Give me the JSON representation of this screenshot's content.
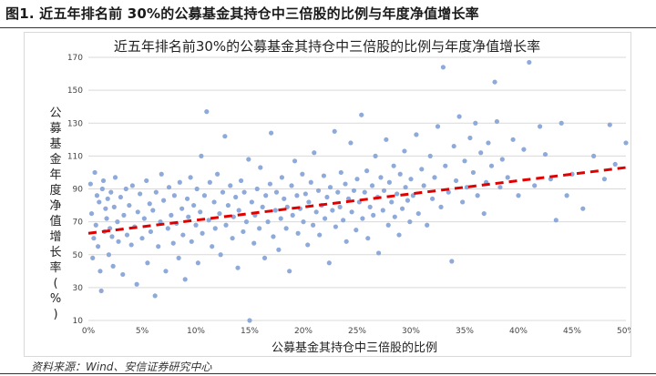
{
  "figure_caption": "图1. 近五年排名前 30%的公募基金其持仓中三倍股的比例与年度净值增长率",
  "source_note": "资料来源：Wind、安信证券研究中心",
  "chart_data": {
    "type": "scatter",
    "title": "近五年排名前30%的公募基金其持仓中三倍股的比例与年度净值增长率",
    "xlabel": "公募基金其持仓中三倍股的比例",
    "ylabel": "公募基金年度净值增长率(%)",
    "xlim": [
      0,
      0.5
    ],
    "ylim": [
      10,
      170
    ],
    "x_ticks": [
      "0%",
      "5%",
      "10%",
      "15%",
      "20%",
      "25%",
      "30%",
      "35%",
      "40%",
      "45%",
      "50%"
    ],
    "y_ticks": [
      "10",
      "30",
      "50",
      "70",
      "90",
      "110",
      "130",
      "150",
      "170"
    ],
    "grid": "horizontal",
    "legend": "none",
    "point_color": "#8eaadb",
    "trendline": {
      "style": "dashed",
      "color": "#e00000",
      "x": [
        0,
        0.5
      ],
      "y": [
        63,
        103
      ]
    },
    "series": [
      {
        "points": [
          [
            0.002,
            93
          ],
          [
            0.003,
            75
          ],
          [
            0.004,
            48
          ],
          [
            0.005,
            60
          ],
          [
            0.006,
            100
          ],
          [
            0.007,
            68
          ],
          [
            0.008,
            86
          ],
          [
            0.009,
            55
          ],
          [
            0.01,
            82
          ],
          [
            0.011,
            40
          ],
          [
            0.012,
            28
          ],
          [
            0.013,
            90
          ],
          [
            0.014,
            95
          ],
          [
            0.015,
            64
          ],
          [
            0.016,
            78
          ],
          [
            0.017,
            72
          ],
          [
            0.018,
            84
          ],
          [
            0.019,
            50
          ],
          [
            0.02,
            66
          ],
          [
            0.021,
            88
          ],
          [
            0.022,
            61
          ],
          [
            0.023,
            43
          ],
          [
            0.024,
            79
          ],
          [
            0.025,
            97
          ],
          [
            0.027,
            70
          ],
          [
            0.028,
            58
          ],
          [
            0.03,
            85
          ],
          [
            0.032,
            38
          ],
          [
            0.033,
            74
          ],
          [
            0.035,
            90
          ],
          [
            0.036,
            62
          ],
          [
            0.038,
            80
          ],
          [
            0.04,
            56
          ],
          [
            0.041,
            92
          ],
          [
            0.043,
            67
          ],
          [
            0.045,
            32
          ],
          [
            0.046,
            76
          ],
          [
            0.048,
            87
          ],
          [
            0.05,
            60
          ],
          [
            0.052,
            72
          ],
          [
            0.054,
            95
          ],
          [
            0.055,
            45
          ],
          [
            0.057,
            81
          ],
          [
            0.058,
            64
          ],
          [
            0.06,
            77
          ],
          [
            0.062,
            25
          ],
          [
            0.063,
            88
          ],
          [
            0.065,
            55
          ],
          [
            0.067,
            70
          ],
          [
            0.068,
            99
          ],
          [
            0.07,
            83
          ],
          [
            0.072,
            40
          ],
          [
            0.074,
            66
          ],
          [
            0.075,
            91
          ],
          [
            0.077,
            74
          ],
          [
            0.079,
            57
          ],
          [
            0.08,
            86
          ],
          [
            0.082,
            69
          ],
          [
            0.084,
            48
          ],
          [
            0.085,
            94
          ],
          [
            0.087,
            78
          ],
          [
            0.088,
            62
          ],
          [
            0.09,
            35
          ],
          [
            0.092,
            84
          ],
          [
            0.093,
            73
          ],
          [
            0.095,
            97
          ],
          [
            0.096,
            58
          ],
          [
            0.098,
            80
          ],
          [
            0.1,
            68
          ],
          [
            0.101,
            90
          ],
          [
            0.102,
            45
          ],
          [
            0.104,
            76
          ],
          [
            0.105,
            110
          ],
          [
            0.106,
            63
          ],
          [
            0.108,
            86
          ],
          [
            0.11,
            137
          ],
          [
            0.112,
            71
          ],
          [
            0.113,
            94
          ],
          [
            0.115,
            55
          ],
          [
            0.117,
            82
          ],
          [
            0.118,
            66
          ],
          [
            0.12,
            99
          ],
          [
            0.122,
            75
          ],
          [
            0.123,
            50
          ],
          [
            0.125,
            88
          ],
          [
            0.127,
            122
          ],
          [
            0.128,
            68
          ],
          [
            0.13,
            80
          ],
          [
            0.132,
            92
          ],
          [
            0.134,
            60
          ],
          [
            0.135,
            73
          ],
          [
            0.137,
            85
          ],
          [
            0.139,
            42
          ],
          [
            0.14,
            77
          ],
          [
            0.142,
            95
          ],
          [
            0.144,
            64
          ],
          [
            0.145,
            88
          ],
          [
            0.147,
            70
          ],
          [
            0.149,
            108
          ],
          [
            0.15,
            10
          ],
          [
            0.152,
            82
          ],
          [
            0.154,
            57
          ],
          [
            0.155,
            74
          ],
          [
            0.157,
            90
          ],
          [
            0.159,
            66
          ],
          [
            0.16,
            103
          ],
          [
            0.162,
            79
          ],
          [
            0.164,
            48
          ],
          [
            0.165,
            86
          ],
          [
            0.167,
            70
          ],
          [
            0.169,
            93
          ],
          [
            0.17,
            124
          ],
          [
            0.172,
            61
          ],
          [
            0.174,
            77
          ],
          [
            0.175,
            88
          ],
          [
            0.177,
            53
          ],
          [
            0.179,
            72
          ],
          [
            0.18,
            97
          ],
          [
            0.182,
            84
          ],
          [
            0.184,
            66
          ],
          [
            0.185,
            79
          ],
          [
            0.187,
            40
          ],
          [
            0.189,
            92
          ],
          [
            0.19,
            74
          ],
          [
            0.192,
            107
          ],
          [
            0.194,
            86
          ],
          [
            0.195,
            63
          ],
          [
            0.197,
            78
          ],
          [
            0.199,
            99
          ],
          [
            0.2,
            70
          ],
          [
            0.202,
            87
          ],
          [
            0.204,
            56
          ],
          [
            0.205,
            82
          ],
          [
            0.207,
            94
          ],
          [
            0.209,
            68
          ],
          [
            0.21,
            112
          ],
          [
            0.212,
            76
          ],
          [
            0.214,
            89
          ],
          [
            0.215,
            62
          ],
          [
            0.217,
            80
          ],
          [
            0.219,
            98
          ],
          [
            0.22,
            72
          ],
          [
            0.222,
            85
          ],
          [
            0.224,
            45
          ],
          [
            0.225,
            91
          ],
          [
            0.227,
            77
          ],
          [
            0.229,
            125
          ],
          [
            0.23,
            67
          ],
          [
            0.232,
            88
          ],
          [
            0.234,
            79
          ],
          [
            0.235,
            100
          ],
          [
            0.237,
            71
          ],
          [
            0.239,
            93
          ],
          [
            0.24,
            58
          ],
          [
            0.242,
            84
          ],
          [
            0.244,
            118
          ],
          [
            0.245,
            76
          ],
          [
            0.247,
            89
          ],
          [
            0.249,
            65
          ],
          [
            0.25,
            96
          ],
          [
            0.252,
            82
          ],
          [
            0.254,
            135
          ],
          [
            0.255,
            72
          ],
          [
            0.257,
            88
          ],
          [
            0.259,
            101
          ],
          [
            0.26,
            60
          ],
          [
            0.262,
            79
          ],
          [
            0.264,
            92
          ],
          [
            0.265,
            74
          ],
          [
            0.267,
            110
          ],
          [
            0.269,
            85
          ],
          [
            0.27,
            51
          ],
          [
            0.272,
            97
          ],
          [
            0.274,
            77
          ],
          [
            0.275,
            89
          ],
          [
            0.277,
            120
          ],
          [
            0.279,
            68
          ],
          [
            0.28,
            94
          ],
          [
            0.282,
            82
          ],
          [
            0.284,
            104
          ],
          [
            0.285,
            73
          ],
          [
            0.287,
            87
          ],
          [
            0.289,
            62
          ],
          [
            0.29,
            99
          ],
          [
            0.292,
            78
          ],
          [
            0.294,
            113
          ],
          [
            0.295,
            91
          ],
          [
            0.297,
            83
          ],
          [
            0.299,
            70
          ],
          [
            0.3,
            96
          ],
          [
            0.302,
            86
          ],
          [
            0.305,
            123
          ],
          [
            0.307,
            75
          ],
          [
            0.31,
            102
          ],
          [
            0.312,
            92
          ],
          [
            0.315,
            68
          ],
          [
            0.318,
            110
          ],
          [
            0.32,
            84
          ],
          [
            0.322,
            97
          ],
          [
            0.325,
            128
          ],
          [
            0.328,
            79
          ],
          [
            0.33,
            164
          ],
          [
            0.332,
            104
          ],
          [
            0.335,
            88
          ],
          [
            0.338,
            46
          ],
          [
            0.34,
            116
          ],
          [
            0.342,
            95
          ],
          [
            0.345,
            134
          ],
          [
            0.348,
            82
          ],
          [
            0.35,
            107
          ],
          [
            0.352,
            91
          ],
          [
            0.355,
            121
          ],
          [
            0.358,
            100
          ],
          [
            0.36,
            130
          ],
          [
            0.362,
            86
          ],
          [
            0.365,
            112
          ],
          [
            0.368,
            75
          ],
          [
            0.37,
            94
          ],
          [
            0.372,
            118
          ],
          [
            0.375,
            104
          ],
          [
            0.378,
            155
          ],
          [
            0.38,
            131
          ],
          [
            0.383,
            91
          ],
          [
            0.385,
            108
          ],
          [
            0.39,
            97
          ],
          [
            0.395,
            120
          ],
          [
            0.4,
            86
          ],
          [
            0.405,
            114
          ],
          [
            0.41,
            167
          ],
          [
            0.415,
            92
          ],
          [
            0.42,
            128
          ],
          [
            0.425,
            111
          ],
          [
            0.43,
            96
          ],
          [
            0.435,
            71
          ],
          [
            0.44,
            130
          ],
          [
            0.445,
            86
          ],
          [
            0.45,
            99
          ],
          [
            0.46,
            78
          ],
          [
            0.47,
            110
          ],
          [
            0.48,
            96
          ],
          [
            0.485,
            129
          ],
          [
            0.49,
            105
          ],
          [
            0.5,
            118
          ]
        ]
      }
    ]
  }
}
